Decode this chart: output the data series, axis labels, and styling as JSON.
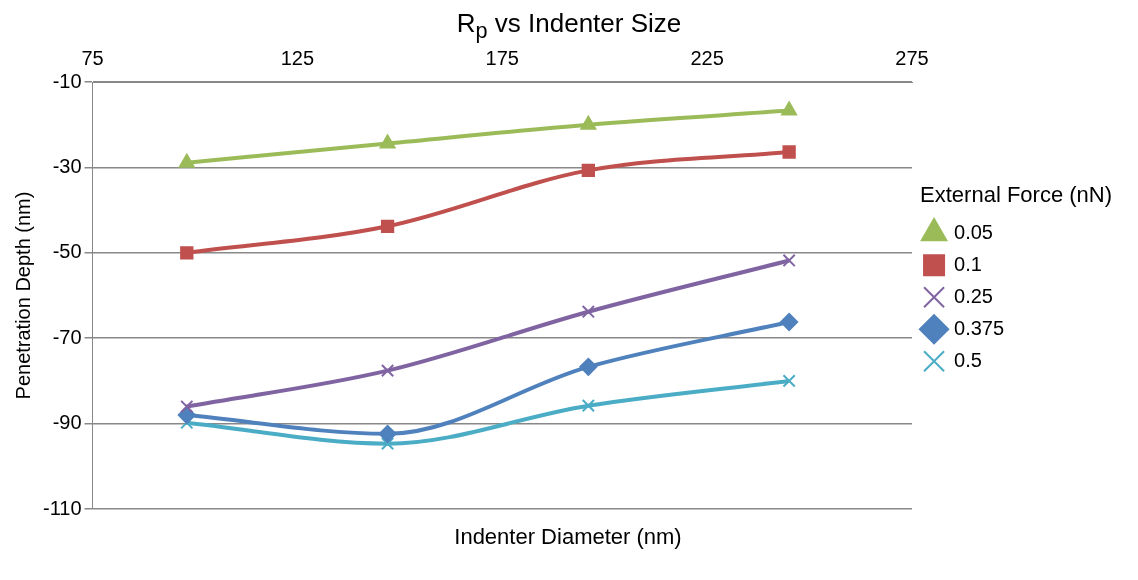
{
  "chart_data": {
    "type": "line",
    "title": "R$_{p}$ vs Indenter Size",
    "xlabel": "Indenter Diameter (nm)",
    "ylabel": "Penetration Depth (nm)",
    "legend_title": "External Force (nN)",
    "xlim": [
      75,
      275
    ],
    "xticks": [
      75,
      125,
      175,
      225,
      275
    ],
    "ylim": [
      -110,
      -10
    ],
    "yticks": [
      -110,
      -90,
      -70,
      -50,
      -30,
      -10
    ],
    "grid": "y",
    "legend": "right",
    "x": [
      98,
      147,
      196,
      245
    ],
    "series": [
      {
        "name": "0.05",
        "color": "#9bbb59",
        "marker": "triangle",
        "values": [
          -28.9,
          -24.4,
          -20,
          -16.7
        ]
      },
      {
        "name": "0.1",
        "color": "#c0504d",
        "marker": "square",
        "values": [
          -50,
          -43.8,
          -30.7,
          -26.4
        ]
      },
      {
        "name": "0.25",
        "color": "#8064a2",
        "marker": "cross",
        "values": [
          -86,
          -77.6,
          -63.8,
          -51.8
        ]
      },
      {
        "name": "0.375",
        "color": "#4f81bd",
        "marker": "diamond",
        "values": [
          -88,
          -92.4,
          -76.7,
          -66.2
        ]
      },
      {
        "name": "0.5",
        "color": "#4bacc6",
        "marker": "cross",
        "values": [
          -89.8,
          -94.7,
          -85.8,
          -80
        ]
      }
    ]
  }
}
